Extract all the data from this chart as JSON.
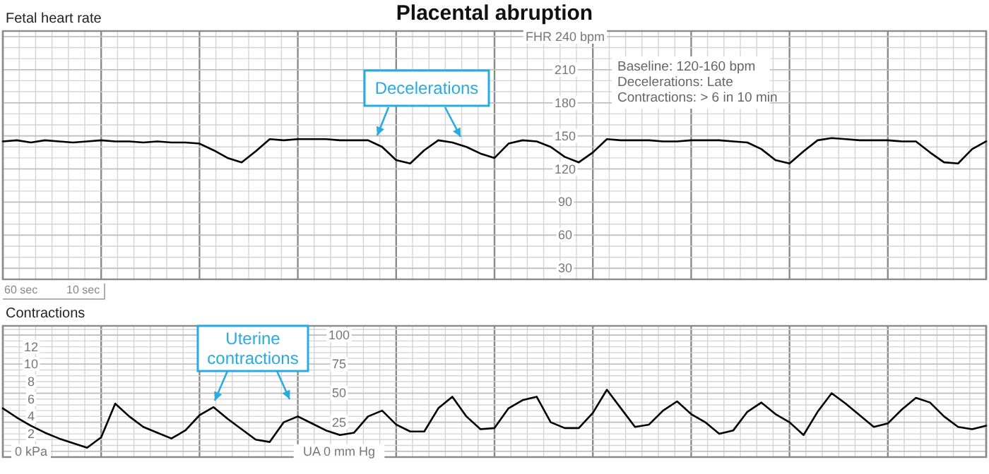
{
  "chart_data": [
    {
      "type": "line",
      "title": "Placental abruption",
      "ylabel": "Fetal heart rate",
      "color": "#000000",
      "grid": true,
      "tick_labels": "y",
      "categories": [
        null,
        null,
        null,
        null,
        null,
        null,
        null,
        null,
        null,
        null,
        null,
        null,
        null,
        null,
        null,
        null,
        null,
        null,
        null,
        null,
        null,
        null,
        null,
        null,
        null,
        null,
        null,
        null,
        null,
        null,
        null,
        null,
        null,
        null,
        null,
        null,
        null,
        null,
        null,
        null,
        null,
        null,
        null,
        null,
        null,
        null,
        null,
        null,
        null,
        null,
        null,
        null,
        null,
        null,
        null,
        null,
        null,
        null,
        null,
        null,
        null,
        null,
        null,
        null,
        null,
        null,
        null,
        null,
        null,
        null,
        null
      ],
      "ylim": [
        20,
        245
      ],
      "yticks": [
        30,
        60,
        90,
        120,
        150,
        180,
        210,
        {
          "value": 240,
          "label": "FHR 240 bpm"
        }
      ],
      "annotations": [
        "Decelerations",
        "Baseline: 120-160 bpm",
        "Decelerations: Late",
        "Contractions: > 6 in 10 min",
        "60 sec",
        "10 sec"
      ],
      "values": [
        145,
        146,
        144,
        146,
        145,
        144,
        145,
        146,
        145,
        145,
        144,
        145,
        144,
        144,
        143,
        137,
        130,
        126,
        136,
        147,
        146,
        147,
        147,
        147,
        146,
        146,
        146,
        140,
        128,
        125,
        137,
        146,
        144,
        140,
        134,
        130,
        143,
        146,
        145,
        140,
        131,
        126,
        135,
        147,
        146,
        146,
        146,
        145,
        145,
        146,
        146,
        146,
        145,
        144,
        138,
        128,
        125,
        136,
        146,
        148,
        147,
        146,
        146,
        146,
        145,
        145,
        135,
        126,
        125,
        138,
        145
      ]
    },
    {
      "type": "line",
      "title": "Contractions",
      "color": "#000000",
      "grid": true,
      "tick_labels": "y",
      "categories": [
        null,
        null,
        null,
        null,
        null,
        null,
        null,
        null,
        null,
        null,
        null,
        null,
        null,
        null,
        null,
        null,
        null,
        null,
        null,
        null,
        null,
        null,
        null,
        null,
        null,
        null,
        null,
        null,
        null,
        null,
        null,
        null,
        null,
        null,
        null,
        null,
        null,
        null,
        null,
        null,
        null,
        null,
        null,
        null,
        null,
        null,
        null,
        null,
        null,
        null,
        null,
        null,
        null,
        null,
        null,
        null,
        null,
        null,
        null,
        null,
        null,
        null,
        null,
        null,
        null,
        null,
        null,
        null,
        null,
        null,
        null
      ],
      "ylim": [
        -5,
        108
      ],
      "yticks": [
        {
          "value": 0,
          "label": "UA  0  mm Hg"
        },
        25,
        50,
        75,
        100
      ],
      "y2lim": [
        -0.67,
        14.4
      ],
      "y2ticks": [
        {
          "value": 0,
          "label": "0 kPa"
        },
        2,
        4,
        6,
        8,
        10,
        12
      ],
      "annotations": [
        "Uterine contractions"
      ],
      "values": [
        37,
        29,
        22,
        16,
        11,
        7,
        3,
        12,
        41,
        30,
        21,
        16,
        11,
        18,
        31,
        38,
        28,
        19,
        10,
        8,
        25,
        30,
        24,
        18,
        14,
        16,
        30,
        35,
        23,
        17,
        17,
        37,
        47,
        30,
        19,
        20,
        37,
        44,
        47,
        25,
        20,
        20,
        33,
        53,
        37,
        21,
        23,
        35,
        43,
        32,
        25,
        15,
        18,
        34,
        42,
        32,
        25,
        14,
        34,
        50,
        41,
        31,
        21,
        24,
        36,
        46,
        42,
        30,
        21,
        19,
        22
      ]
    }
  ]
}
